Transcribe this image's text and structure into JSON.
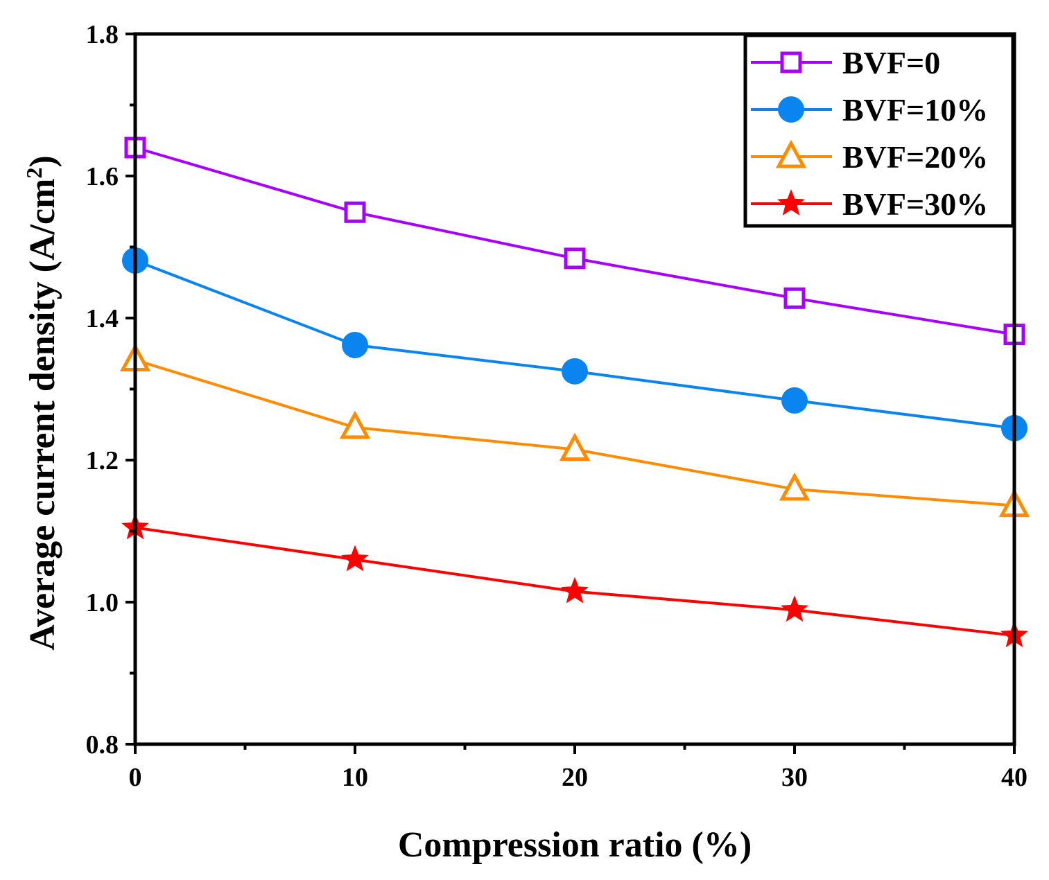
{
  "chart_data": {
    "type": "line",
    "title": "",
    "xlabel": "Compression ratio (%)",
    "ylabel": "Average current density (A/cm",
    "ylabel_sup": "2",
    "ylabel_close": ")",
    "xlim": [
      0,
      40
    ],
    "ylim": [
      0.8,
      1.8
    ],
    "xticks": [
      0,
      10,
      20,
      30,
      40
    ],
    "xtick_labels": [
      "0",
      "10",
      "20",
      "30",
      "40"
    ],
    "yticks": [
      0.8,
      1.0,
      1.2,
      1.4,
      1.6,
      1.8
    ],
    "ytick_labels": [
      "0.8",
      "1.0",
      "1.2",
      "1.4",
      "1.6",
      "1.8"
    ],
    "x_minor_step": 5,
    "y_minor_step": 0.1,
    "legend_position": "top-right",
    "x": [
      0,
      10,
      20,
      30,
      40
    ],
    "series": [
      {
        "name": "BVF=0",
        "color": "#a600ff",
        "marker": "open-square",
        "values": [
          1.64,
          1.549,
          1.484,
          1.428,
          1.377
        ]
      },
      {
        "name": "BVF=10%",
        "color": "#0a84ee",
        "marker": "filled-circle",
        "values": [
          1.481,
          1.362,
          1.325,
          1.284,
          1.245
        ]
      },
      {
        "name": "BVF=20%",
        "color": "#ff8c00",
        "marker": "open-triangle",
        "values": [
          1.341,
          1.246,
          1.215,
          1.159,
          1.136
        ]
      },
      {
        "name": "BVF=30%",
        "color": "#ff0000",
        "marker": "filled-star",
        "values": [
          1.105,
          1.06,
          1.015,
          0.989,
          0.953
        ]
      }
    ]
  }
}
